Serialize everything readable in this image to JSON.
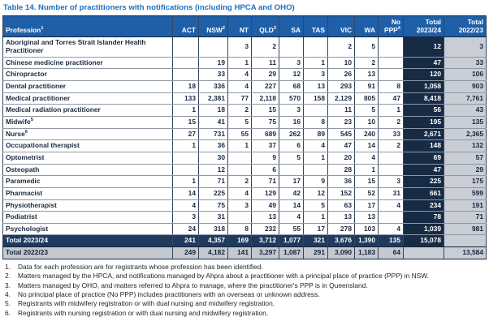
{
  "title": "Table 14. Number of practitioners with notifications (including HPCA and OHO)",
  "colors": {
    "title_blue": "#1a70c0",
    "header_blue": "#1e5fa8",
    "total_column_navy": "#182b45",
    "total_row_navy": "#1e3a5f",
    "prev_total_gray": "#c9cdd5",
    "body_text_navy": "#1a2940"
  },
  "table": {
    "columns": [
      {
        "label": "Profession",
        "sup": "1"
      },
      {
        "label": "ACT",
        "sup": ""
      },
      {
        "label": "NSW",
        "sup": "2"
      },
      {
        "label": "NT",
        "sup": ""
      },
      {
        "label": "QLD",
        "sup": "3"
      },
      {
        "label": "SA",
        "sup": ""
      },
      {
        "label": "TAS",
        "sup": ""
      },
      {
        "label": "VIC",
        "sup": ""
      },
      {
        "label": "WA",
        "sup": ""
      },
      {
        "label": "No PPP",
        "sup": "4"
      },
      {
        "label": "Total 2023/24",
        "sup": ""
      },
      {
        "label": "Total 2022/23",
        "sup": ""
      }
    ],
    "rows": [
      {
        "name": "Aboriginal and Torres Strait Islander Health Practitioner",
        "sup": "",
        "values": [
          "",
          "",
          "3",
          "2",
          "",
          "",
          "2",
          "5",
          "",
          "12",
          "3"
        ]
      },
      {
        "name": "Chinese medicine practitioner",
        "sup": "",
        "values": [
          "",
          "19",
          "1",
          "11",
          "3",
          "1",
          "10",
          "2",
          "",
          "47",
          "33"
        ]
      },
      {
        "name": "Chiropractor",
        "sup": "",
        "values": [
          "",
          "33",
          "4",
          "29",
          "12",
          "3",
          "26",
          "13",
          "",
          "120",
          "106"
        ]
      },
      {
        "name": "Dental practitioner",
        "sup": "",
        "values": [
          "18",
          "336",
          "4",
          "227",
          "68",
          "13",
          "293",
          "91",
          "8",
          "1,058",
          "903"
        ]
      },
      {
        "name": "Medical practitioner",
        "sup": "",
        "values": [
          "133",
          "2,381",
          "77",
          "2,118",
          "570",
          "158",
          "2,129",
          "805",
          "47",
          "8,418",
          "7,761"
        ]
      },
      {
        "name": "Medical radiation practitioner",
        "sup": "",
        "values": [
          "1",
          "18",
          "2",
          "15",
          "3",
          "",
          "11",
          "5",
          "1",
          "56",
          "43"
        ]
      },
      {
        "name": "Midwife",
        "sup": "5",
        "values": [
          "15",
          "41",
          "5",
          "75",
          "16",
          "8",
          "23",
          "10",
          "2",
          "195",
          "135"
        ]
      },
      {
        "name": "Nurse",
        "sup": "6",
        "values": [
          "27",
          "731",
          "55",
          "689",
          "262",
          "89",
          "545",
          "240",
          "33",
          "2,671",
          "2,365"
        ]
      },
      {
        "name": "Occupational therapist",
        "sup": "",
        "values": [
          "1",
          "36",
          "1",
          "37",
          "6",
          "4",
          "47",
          "14",
          "2",
          "148",
          "132"
        ]
      },
      {
        "name": "Optometrist",
        "sup": "",
        "values": [
          "",
          "30",
          "",
          "9",
          "5",
          "1",
          "20",
          "4",
          "",
          "69",
          "57"
        ]
      },
      {
        "name": "Osteopath",
        "sup": "",
        "values": [
          "",
          "12",
          "",
          "6",
          "",
          "",
          "28",
          "1",
          "",
          "47",
          "29"
        ]
      },
      {
        "name": "Paramedic",
        "sup": "",
        "values": [
          "1",
          "71",
          "2",
          "71",
          "17",
          "9",
          "36",
          "15",
          "3",
          "225",
          "175"
        ]
      },
      {
        "name": "Pharmacist",
        "sup": "",
        "values": [
          "14",
          "225",
          "4",
          "129",
          "42",
          "12",
          "152",
          "52",
          "31",
          "661",
          "599"
        ]
      },
      {
        "name": "Physiotherapist",
        "sup": "",
        "values": [
          "4",
          "75",
          "3",
          "49",
          "14",
          "5",
          "63",
          "17",
          "4",
          "234",
          "191"
        ]
      },
      {
        "name": "Podiatrist",
        "sup": "",
        "values": [
          "3",
          "31",
          "",
          "13",
          "4",
          "1",
          "13",
          "13",
          "",
          "78",
          "71"
        ]
      },
      {
        "name": "Psychologist",
        "sup": "",
        "values": [
          "24",
          "318",
          "8",
          "232",
          "55",
          "17",
          "278",
          "103",
          "4",
          "1,039",
          "981"
        ]
      }
    ],
    "total_rows": [
      {
        "name": "Total 2023/24",
        "style": "dark",
        "values": [
          "241",
          "4,357",
          "169",
          "3,712",
          "1,077",
          "321",
          "3,676",
          "1,390",
          "135",
          "15,078",
          "DIAG"
        ]
      },
      {
        "name": "Total 2022/23",
        "style": "gray",
        "values": [
          "249",
          "4,182",
          "141",
          "3,297",
          "1,087",
          "291",
          "3,090",
          "1,183",
          "64",
          "DIAG",
          "13,584"
        ]
      }
    ]
  },
  "footnotes": [
    {
      "num": "1.",
      "text": "Data for each profession are for registrants whose profession has been identified."
    },
    {
      "num": "2.",
      "text": "Matters managed by the HPCA, and notifications managed by Ahpra about a practitioner with a principal place of practice (PPP) in NSW."
    },
    {
      "num": "3.",
      "text": "Matters managed by OHO, and matters referred to Ahpra to manage, where the practitioner's PPP is in Queensland."
    },
    {
      "num": "4.",
      "text": "No principal place of practice (No PPP) includes practitioners with an overseas or unknown address."
    },
    {
      "num": "5.",
      "text": "Registrants with midwifery registration or with dual nursing and midwifery registration."
    },
    {
      "num": "6.",
      "text": "Registrants with nursing registration or with dual nursing and midwifery registration."
    }
  ]
}
